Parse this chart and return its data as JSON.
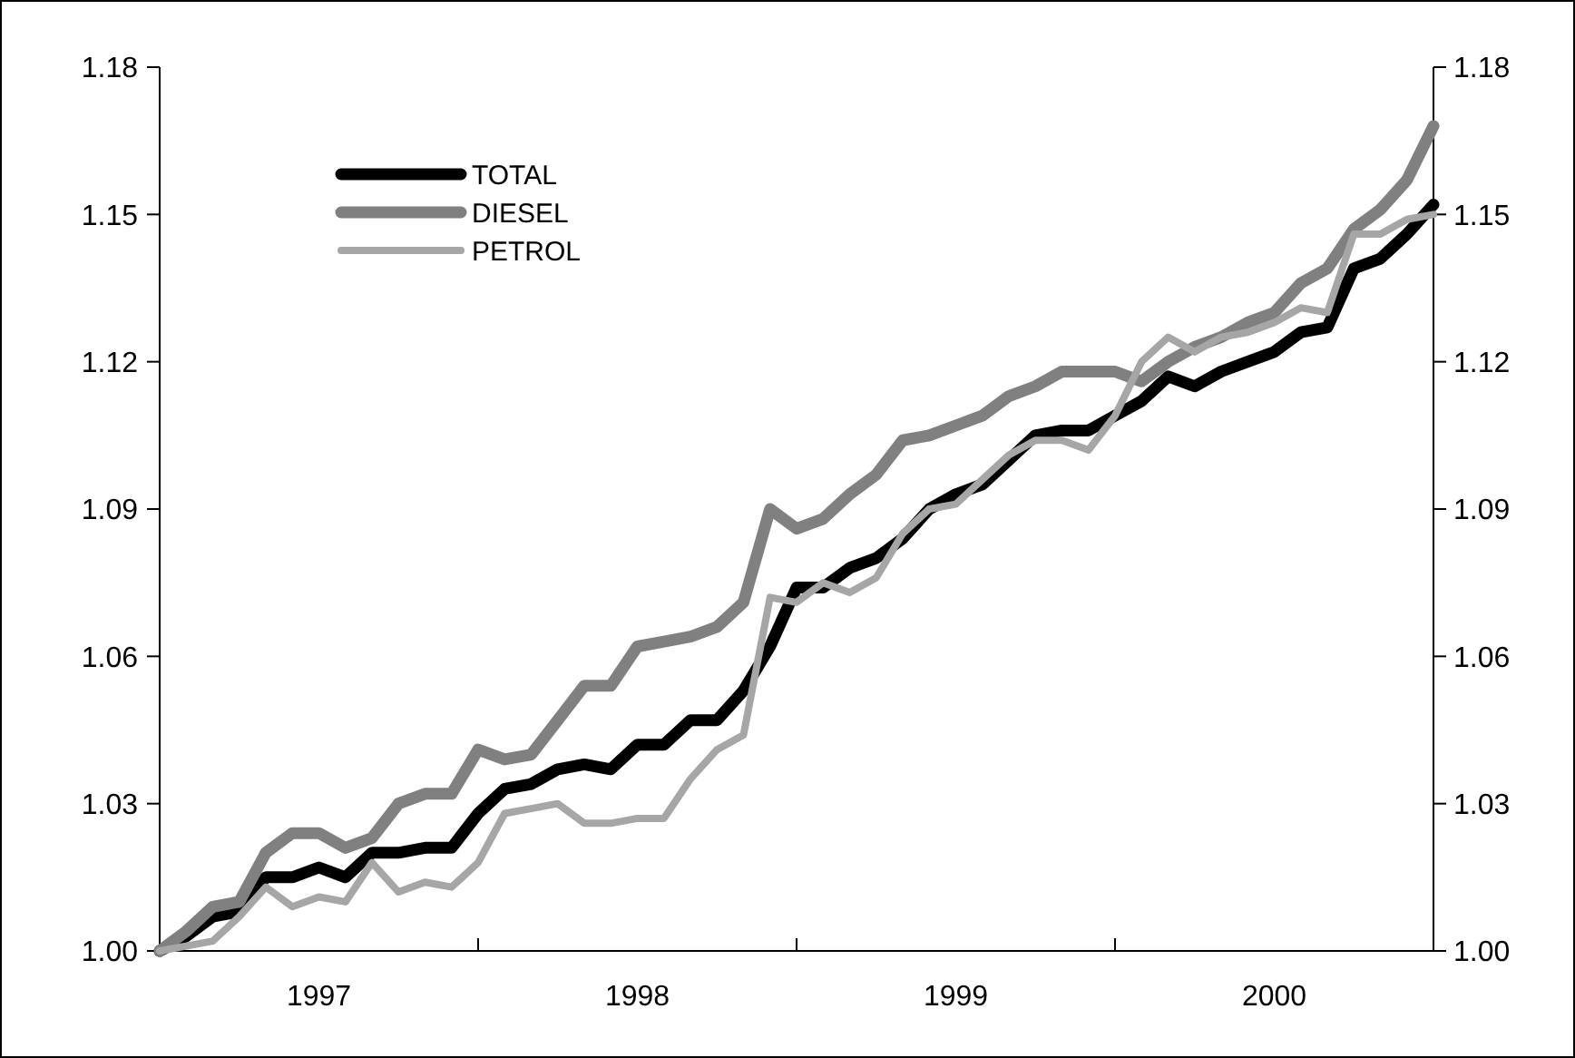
{
  "chart_data": {
    "type": "line",
    "x": [
      1997,
      1997.0833,
      1997.1667,
      1997.25,
      1997.3333,
      1997.4167,
      1997.5,
      1997.5833,
      1997.6667,
      1997.75,
      1997.8333,
      1997.9167,
      1998,
      1998.0833,
      1998.1667,
      1998.25,
      1998.3333,
      1998.4167,
      1998.5,
      1998.5833,
      1998.6667,
      1998.75,
      1998.8333,
      1998.9167,
      1999,
      1999.0833,
      1999.1667,
      1999.25,
      1999.3333,
      1999.4167,
      1999.5,
      1999.5833,
      1999.6667,
      1999.75,
      1999.8333,
      1999.9167,
      2000,
      2000.0833,
      2000.1667,
      2000.25,
      2000.3333,
      2000.4167,
      2000.5,
      2000.5833,
      2000.6667,
      2000.75,
      2000.8333,
      2000.9167,
      2001
    ],
    "series": [
      {
        "name": "TOTAL",
        "color": "#000000",
        "values": [
          1.0,
          1.003,
          1.007,
          1.008,
          1.015,
          1.015,
          1.017,
          1.015,
          1.02,
          1.02,
          1.021,
          1.021,
          1.028,
          1.033,
          1.034,
          1.037,
          1.038,
          1.037,
          1.042,
          1.042,
          1.047,
          1.047,
          1.053,
          1.062,
          1.074,
          1.074,
          1.078,
          1.08,
          1.084,
          1.09,
          1.093,
          1.095,
          1.1,
          1.105,
          1.106,
          1.106,
          1.109,
          1.112,
          1.117,
          1.115,
          1.118,
          1.12,
          1.122,
          1.126,
          1.127,
          1.139,
          1.141,
          1.146,
          1.152
        ]
      },
      {
        "name": "DIESEL",
        "color": "#808080",
        "values": [
          1.0,
          1.004,
          1.009,
          1.01,
          1.02,
          1.024,
          1.024,
          1.021,
          1.023,
          1.03,
          1.032,
          1.032,
          1.041,
          1.039,
          1.04,
          1.047,
          1.054,
          1.054,
          1.062,
          1.063,
          1.064,
          1.066,
          1.071,
          1.09,
          1.086,
          1.088,
          1.093,
          1.097,
          1.104,
          1.105,
          1.107,
          1.109,
          1.113,
          1.115,
          1.118,
          1.118,
          1.118,
          1.116,
          1.12,
          1.123,
          1.125,
          1.128,
          1.13,
          1.136,
          1.139,
          1.147,
          1.151,
          1.157,
          1.168
        ]
      },
      {
        "name": "PETROL",
        "color": "#a6a6a6",
        "values": [
          1.0,
          1.001,
          1.002,
          1.007,
          1.013,
          1.009,
          1.011,
          1.01,
          1.018,
          1.012,
          1.014,
          1.013,
          1.018,
          1.028,
          1.029,
          1.03,
          1.026,
          1.026,
          1.027,
          1.027,
          1.035,
          1.041,
          1.044,
          1.072,
          1.071,
          1.075,
          1.073,
          1.076,
          1.085,
          1.09,
          1.091,
          1.096,
          1.101,
          1.104,
          1.104,
          1.102,
          1.109,
          1.12,
          1.125,
          1.122,
          1.125,
          1.126,
          1.128,
          1.131,
          1.13,
          1.146,
          1.146,
          1.149,
          1.15
        ]
      }
    ],
    "xlim": [
      1997,
      2001
    ],
    "xticks": [
      {
        "value": 1997.5,
        "label": "1997"
      },
      {
        "value": 1998,
        "label": null
      },
      {
        "value": 1998.5,
        "label": "1998"
      },
      {
        "value": 1999,
        "label": null
      },
      {
        "value": 1999.5,
        "label": "1999"
      },
      {
        "value": 2000,
        "label": null
      },
      {
        "value": 2000.5,
        "label": "2000"
      }
    ],
    "ylim": [
      1.0,
      1.18
    ],
    "yticks": [
      {
        "value": 1.0,
        "label": "1.00"
      },
      {
        "value": 1.03,
        "label": "1.03"
      },
      {
        "value": 1.06,
        "label": "1.06"
      },
      {
        "value": 1.09,
        "label": "1.09"
      },
      {
        "value": 1.12,
        "label": "1.12"
      },
      {
        "value": 1.15,
        "label": "1.15"
      },
      {
        "value": 1.18,
        "label": "1.18"
      }
    ],
    "y2lim": [
      1.0,
      1.18
    ],
    "y2ticks": [
      {
        "value": 1.0,
        "label": "1.00"
      },
      {
        "value": 1.03,
        "label": "1.03"
      },
      {
        "value": 1.06,
        "label": "1.06"
      },
      {
        "value": 1.09,
        "label": "1.09"
      },
      {
        "value": 1.12,
        "label": "1.12"
      },
      {
        "value": 1.15,
        "label": "1.15"
      },
      {
        "value": 1.18,
        "label": "1.18"
      }
    ],
    "grid": false,
    "legend": "top left",
    "line_style": "solid",
    "marker": "none"
  }
}
